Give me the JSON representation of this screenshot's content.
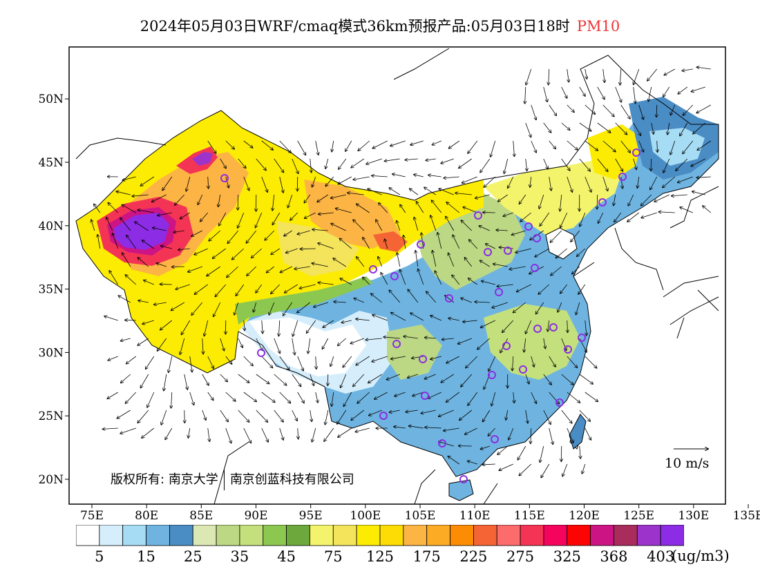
{
  "title": {
    "text": "2024年05月03日WRF/cmaq模式36km预报产品:05月03日18时",
    "variable": "PM10",
    "variable_color": "#ee3333"
  },
  "axes": {
    "x_ticks": [
      "75E",
      "80E",
      "85E",
      "90E",
      "95E",
      "100E",
      "105E",
      "110E",
      "115E",
      "120E",
      "125E",
      "130E",
      "135E"
    ],
    "y_ticks": [
      "20N",
      "25N",
      "30N",
      "35N",
      "40N",
      "45N",
      "50N"
    ]
  },
  "wind_scale": {
    "label": "10 m/s"
  },
  "copyright": {
    "prefix": "版权所有:",
    "org1": "南京大学",
    "org2": "南京创蓝科技有限公司"
  },
  "legend": {
    "colors": [
      "#ffffff",
      "#d6eefc",
      "#a6dcf4",
      "#6fb4e0",
      "#4a8cc4",
      "#dce8b4",
      "#bcd884",
      "#c4e07c",
      "#8cc850",
      "#6ca83c",
      "#f4f46c",
      "#f4e45c",
      "#fcec04",
      "#fcdc04",
      "#fcb444",
      "#fcac24",
      "#fc8c04",
      "#f46434",
      "#fc6c6c",
      "#f43454",
      "#f4045c",
      "#fc0404",
      "#cc1484",
      "#a82c5c",
      "#9c34cc",
      "#8c2ce4"
    ],
    "labels": [
      "5",
      "15",
      "25",
      "35",
      "45",
      "75",
      "125",
      "175",
      "225",
      "275",
      "325",
      "368",
      "403"
    ],
    "units": "(ug/m3)"
  }
}
